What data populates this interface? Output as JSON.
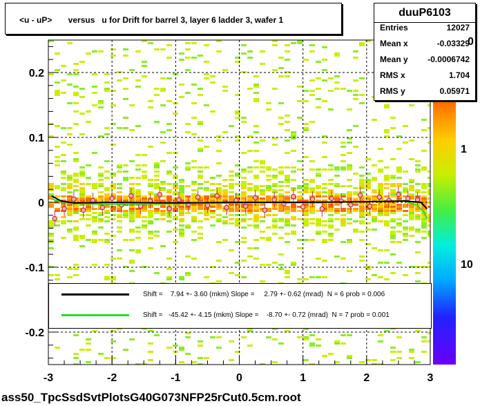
{
  "title": "<u - uP>       versus   u for Drift for barrel 3, layer 6 ladder 3, wafer 1",
  "footer": "ass50_TpcSsdSvtPlotsG40G073NFP25rCut0.5cm.root",
  "stats": {
    "name": "duuP6103",
    "rows": [
      {
        "label": "Entries",
        "value": "12027"
      },
      {
        "label": "Mean x",
        "value": "-0.03329"
      },
      {
        "label": "Mean y",
        "value": "-0.0006742"
      },
      {
        "label": "RMS x",
        "value": "1.704"
      },
      {
        "label": "RMS y",
        "value": "0.05971"
      }
    ]
  },
  "legend": [
    {
      "color": "#000000",
      "text": "Shift =    7.94 +- 3.60 (mkm) Slope =     2.79 +- 0.62 (mrad)  N = 6 prob = 0.006"
    },
    {
      "color": "#22dd22",
      "text": "Shift =   -45.42 +- 4.15 (mkm) Slope =    -8.70 +- 0.72 (mrad)  N = 7 prob = 0.001"
    }
  ],
  "zaxis": {
    "labels": [
      "1",
      "10"
    ],
    "partial_top_label": "0"
  },
  "colors": {
    "fit1": "#000000",
    "fit2": "#22dd22",
    "points": "#ff6666"
  },
  "chart_data": {
    "type": "heatmap",
    "xlim": [
      -3,
      3
    ],
    "ylim": [
      -0.25,
      0.25
    ],
    "x_ticks": [
      -3,
      -2,
      -1,
      0,
      1,
      2,
      3
    ],
    "y_ticks": [
      -0.2,
      -0.1,
      0,
      0.1,
      0.2
    ],
    "x_tick_labels": [
      "-3",
      "-2",
      "-1",
      "0",
      "1",
      "2",
      "3"
    ],
    "y_tick_labels": [
      "-0.2",
      "-0.1",
      "0",
      "0.1",
      "0.2"
    ],
    "grid": true,
    "profile_points": {
      "x": [
        -2.9,
        -2.75,
        -2.6,
        -2.45,
        -2.3,
        -2.15,
        -2.0,
        -1.85,
        -1.7,
        -1.55,
        -1.4,
        -1.25,
        -1.1,
        -0.95,
        -0.8,
        -0.65,
        -0.5,
        -0.35,
        -0.2,
        -0.05,
        0.1,
        0.25,
        0.4,
        0.55,
        0.7,
        0.85,
        1.0,
        1.15,
        1.3,
        1.45,
        1.6,
        1.75,
        1.9,
        2.05,
        2.2,
        2.35,
        2.5,
        2.65,
        2.8
      ],
      "y": [
        -0.025,
        -0.01,
        0.005,
        -0.012,
        0.003,
        -0.008,
        0.006,
        -0.004,
        0.01,
        -0.006,
        0.002,
        0.012,
        -0.01,
        0.004,
        -0.003,
        0.008,
        -0.005,
        0.01,
        -0.008,
        0.003,
        -0.006,
        0.007,
        -0.012,
        0.004,
        -0.002,
        0.009,
        -0.007,
        0.005,
        -0.01,
        0.006,
        0.002,
        -0.004,
        0.011,
        -0.006,
        0.008,
        0.003,
        0.012,
        0.006,
        0.004
      ]
    },
    "fit_black": {
      "x": [
        -2.95,
        -2.8,
        -2.6,
        -2.0,
        -1.0,
        0.0,
        1.0,
        2.0,
        2.6,
        2.85,
        2.95
      ],
      "y": [
        0.01,
        0.002,
        -0.001,
        0.0,
        -0.001,
        0.0,
        0.0,
        0.001,
        0.002,
        0.0,
        -0.01
      ]
    },
    "fit_green": {
      "x": [
        -2.95,
        -2.8,
        -2.6,
        -2.0,
        -1.0,
        0.0,
        1.0,
        2.0,
        2.6,
        2.8,
        2.9,
        2.95
      ],
      "y": [
        0.005,
        0.001,
        -0.002,
        -0.003,
        -0.002,
        -0.001,
        0.0,
        0.001,
        0.002,
        -0.005,
        -0.015,
        -0.025
      ]
    }
  }
}
